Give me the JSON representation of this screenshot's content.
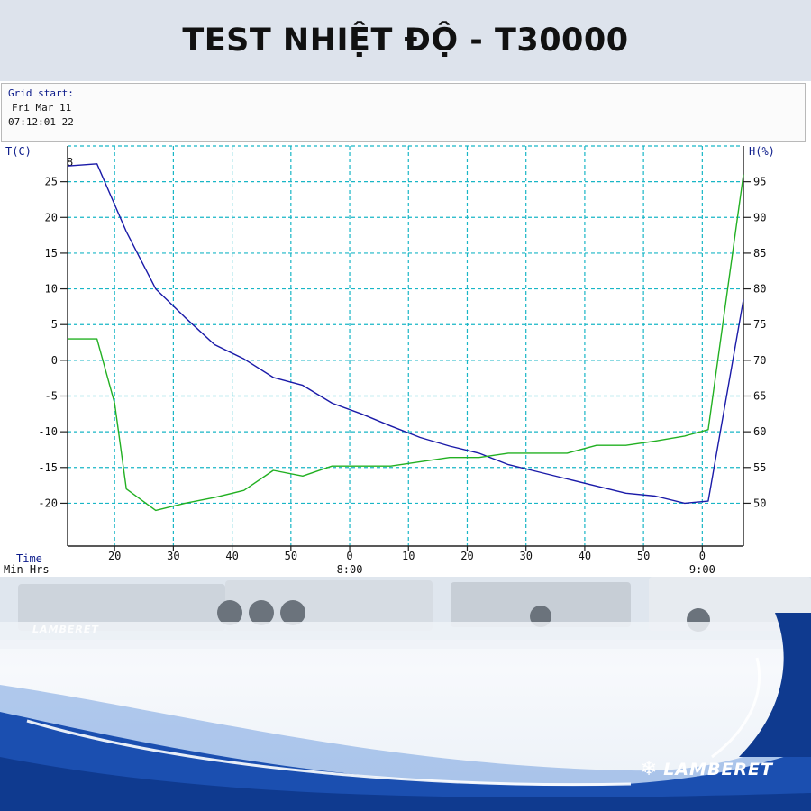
{
  "page": {
    "title": "TEST NHIỆT ĐỘ - T30000"
  },
  "info": {
    "grid_start_label": "Grid start:",
    "date": "Fri Mar 11",
    "time": "07:12:01 22"
  },
  "chart_data": {
    "type": "line",
    "left_axis_label": "T(C)",
    "right_axis_label": "H(%)",
    "corner_mark": "8",
    "x_axis_title_line1": "Time",
    "x_axis_title_line2": "Min-Hrs",
    "x_ticks": [
      {
        "min": 20,
        "label": "20"
      },
      {
        "min": 30,
        "label": "30"
      },
      {
        "min": 40,
        "label": "40"
      },
      {
        "min": 50,
        "label": "50"
      },
      {
        "min": 60,
        "label": "0"
      },
      {
        "min": 70,
        "label": "10"
      },
      {
        "min": 80,
        "label": "20"
      },
      {
        "min": 90,
        "label": "30"
      },
      {
        "min": 100,
        "label": "40"
      },
      {
        "min": 110,
        "label": "50"
      },
      {
        "min": 120,
        "label": "0"
      }
    ],
    "hour_labels": [
      {
        "min": 60,
        "label": "8:00"
      },
      {
        "min": 120,
        "label": "9:00"
      }
    ],
    "x_range_min": [
      12,
      127
    ],
    "y_left_range": [
      -26,
      30
    ],
    "y_left_ticks": [
      25,
      20,
      15,
      10,
      5,
      0,
      -5,
      -10,
      -15,
      -20
    ],
    "y_right_ticks": [
      {
        "label": "95",
        "t": 25
      },
      {
        "label": "90",
        "t": 20
      },
      {
        "label": "85",
        "t": 15
      },
      {
        "label": "80",
        "t": 10
      },
      {
        "label": "75",
        "t": 5
      },
      {
        "label": "70",
        "t": 0
      },
      {
        "label": "65",
        "t": -5
      },
      {
        "label": "60",
        "t": -10
      },
      {
        "label": "55",
        "t": -15
      },
      {
        "label": "50",
        "t": -20
      }
    ],
    "grid": true,
    "series": [
      {
        "color": "#1a1aa8",
        "points": [
          [
            12,
            27.2
          ],
          [
            17,
            27.5
          ],
          [
            22,
            18.0
          ],
          [
            27,
            10.0
          ],
          [
            32,
            6.0
          ],
          [
            37,
            2.2
          ],
          [
            42,
            0.2
          ],
          [
            47,
            -2.4
          ],
          [
            52,
            -3.5
          ],
          [
            57,
            -6.0
          ],
          [
            62,
            -7.5
          ],
          [
            67,
            -9.2
          ],
          [
            72,
            -10.8
          ],
          [
            77,
            -12.0
          ],
          [
            82,
            -13.0
          ],
          [
            87,
            -14.6
          ],
          [
            92,
            -15.6
          ],
          [
            97,
            -16.6
          ],
          [
            102,
            -17.6
          ],
          [
            107,
            -18.6
          ],
          [
            112,
            -19.0
          ],
          [
            117,
            -20.0
          ],
          [
            121,
            -19.7
          ],
          [
            127,
            8.5
          ]
        ]
      },
      {
        "color": "#22b022",
        "points": [
          [
            12,
            3.0
          ],
          [
            17,
            3.0
          ],
          [
            20,
            -6.0
          ],
          [
            22,
            -18.0
          ],
          [
            27,
            -21.0
          ],
          [
            32,
            -20.0
          ],
          [
            37,
            -19.2
          ],
          [
            42,
            -18.2
          ],
          [
            47,
            -15.4
          ],
          [
            52,
            -16.2
          ],
          [
            57,
            -14.8
          ],
          [
            62,
            -14.8
          ],
          [
            67,
            -14.8
          ],
          [
            72,
            -14.2
          ],
          [
            77,
            -13.6
          ],
          [
            82,
            -13.6
          ],
          [
            87,
            -13.0
          ],
          [
            92,
            -13.0
          ],
          [
            97,
            -13.0
          ],
          [
            102,
            -11.9
          ],
          [
            107,
            -11.9
          ],
          [
            112,
            -11.3
          ],
          [
            117,
            -10.6
          ],
          [
            121,
            -9.7
          ],
          [
            127,
            26.0
          ]
        ]
      }
    ]
  },
  "footer": {
    "brand": "LAMBERET",
    "truck_brand": "LAMBERET",
    "snow_icon": "❄",
    "colors": {
      "deep_blue": "#0f3a8f",
      "mid_blue": "#2f6fd0",
      "truck_grey": "#c9cfd6"
    }
  }
}
